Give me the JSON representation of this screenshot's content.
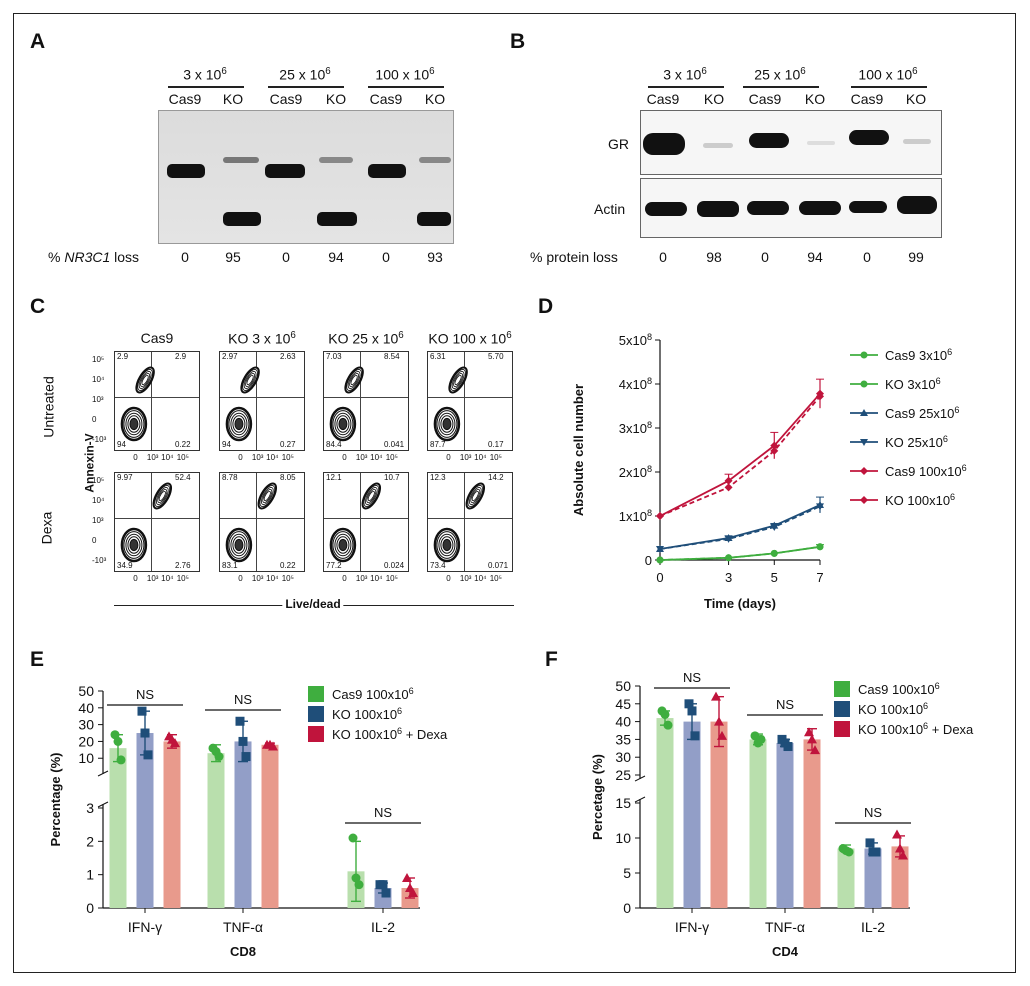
{
  "panel_labels": {
    "a": "A",
    "b": "B",
    "c": "C",
    "d": "D",
    "e": "E",
    "f": "F"
  },
  "panel_a": {
    "groups": [
      {
        "label": "3 x 10",
        "exp": "6"
      },
      {
        "label": "25 x 10",
        "exp": "6"
      },
      {
        "label": "100 x 10",
        "exp": "6"
      }
    ],
    "lanes": [
      "Cas9",
      "KO",
      "Cas9",
      "KO",
      "Cas9",
      "KO"
    ],
    "loss_prefix": "% ",
    "loss_gene": "NR3C1",
    "loss_suffix": " loss",
    "loss_values": [
      "0",
      "95",
      "0",
      "94",
      "0",
      "93"
    ]
  },
  "panel_b": {
    "groups": [
      {
        "label": "3 x 10",
        "exp": "6"
      },
      {
        "label": "25 x 10",
        "exp": "6"
      },
      {
        "label": "100 x 10",
        "exp": "6"
      }
    ],
    "lanes": [
      "Cas9",
      "KO",
      "Cas9",
      "KO",
      "Cas9",
      "KO"
    ],
    "rows": [
      "GR",
      "Actin"
    ],
    "loss_label": "% protein loss",
    "loss_values": [
      "0",
      "98",
      "0",
      "94",
      "0",
      "99"
    ]
  },
  "panel_c": {
    "columns": [
      {
        "label": "Cas9",
        "exp": ""
      },
      {
        "label": "KO 3 x 10",
        "exp": "6"
      },
      {
        "label": "KO 25 x 10",
        "exp": "6"
      },
      {
        "label": "KO 100 x 10",
        "exp": "6"
      }
    ],
    "rows": [
      "Untreated",
      "Dexa"
    ],
    "ylabel": "Annexin-V",
    "xlabel": "Live/dead",
    "y_ticks": [
      "10⁵",
      "10⁴",
      "10³",
      "0",
      "-10³"
    ],
    "x_ticks": [
      "0",
      "10³",
      "10⁴",
      "10⁵"
    ],
    "quadrants": [
      {
        "ul": "2.9",
        "ur": "2.9",
        "ll": "94",
        "lr": "0.22"
      },
      {
        "ul": "2.97",
        "ur": "2.63",
        "ll": "94",
        "lr": "0.27"
      },
      {
        "ul": "7.03",
        "ur": "8.54",
        "ll": "84.4",
        "lr": "0.041"
      },
      {
        "ul": "6.31",
        "ur": "5.70",
        "ll": "87.7",
        "lr": "0.17"
      },
      {
        "ul": "9.97",
        "ur": "52.4",
        "ll": "34.9",
        "lr": "2.76"
      },
      {
        "ul": "8.78",
        "ur": "8.05",
        "ll": "83.1",
        "lr": "0.22"
      },
      {
        "ul": "12.1",
        "ur": "10.7",
        "ll": "77.2",
        "lr": "0.024"
      },
      {
        "ul": "12.3",
        "ur": "14.2",
        "ll": "73.4",
        "lr": "0.071"
      }
    ]
  },
  "chart_data": [
    {
      "id": "D",
      "type": "line",
      "xlabel": "Time (days)",
      "ylabel": "Absolute cell number",
      "x": [
        0,
        3,
        5,
        7
      ],
      "xlim": [
        0,
        7
      ],
      "ylim": [
        0,
        500000000
      ],
      "y_ticks": [
        {
          "v": 0,
          "m": "0",
          "e": ""
        },
        {
          "v": 100000000,
          "m": "1x10",
          "e": "8"
        },
        {
          "v": 200000000,
          "m": "2x10",
          "e": "8"
        },
        {
          "v": 300000000,
          "m": "3x10",
          "e": "8"
        },
        {
          "v": 400000000,
          "m": "4x10",
          "e": "8"
        },
        {
          "v": 500000000,
          "m": "5x10",
          "e": "8"
        }
      ],
      "series": [
        {
          "name": "Cas9 3x10",
          "exp": "6",
          "color": "#3fae3f",
          "dash": false,
          "marker": "circle",
          "values": [
            0,
            5000000,
            15000000,
            30000000
          ],
          "err": [
            0,
            0,
            0,
            5000000
          ]
        },
        {
          "name": "KO 3x10",
          "exp": "6",
          "color": "#3fae3f",
          "dash": true,
          "marker": "circle",
          "values": [
            0,
            5000000,
            15000000,
            30000000
          ],
          "err": [
            0,
            0,
            0,
            0
          ]
        },
        {
          "name": "Cas9 25x10",
          "exp": "6",
          "color": "#1f4e79",
          "dash": false,
          "marker": "triangle",
          "values": [
            25000000,
            50000000,
            78000000,
            125000000
          ],
          "err": [
            0,
            5000000,
            5000000,
            18000000
          ]
        },
        {
          "name": "KO 25x10",
          "exp": "6",
          "color": "#1f4e79",
          "dash": true,
          "marker": "triangle-down",
          "values": [
            25000000,
            48000000,
            75000000,
            122000000
          ],
          "err": [
            0,
            0,
            0,
            0
          ]
        },
        {
          "name": "Cas9 100x10",
          "exp": "6",
          "color": "#c0143c",
          "dash": false,
          "marker": "diamond",
          "values": [
            100000000,
            180000000,
            260000000,
            378000000
          ],
          "err": [
            0,
            15000000,
            30000000,
            33000000
          ]
        },
        {
          "name": "KO 100x10",
          "exp": "6",
          "color": "#c0143c",
          "dash": true,
          "marker": "diamond",
          "values": [
            100000000,
            165000000,
            248000000,
            372000000
          ],
          "err": [
            0,
            0,
            0,
            0
          ]
        }
      ]
    },
    {
      "id": "E",
      "type": "bar",
      "title": "",
      "xlabel": "CD8",
      "ylabel": "Percentage (%)",
      "categories": [
        "IFN-γ",
        "TNF-α",
        "IL-2"
      ],
      "upper_ylim": [
        3,
        50
      ],
      "upper_ticks": [
        10,
        20,
        30,
        40,
        50
      ],
      "lower_ylim": [
        0,
        3
      ],
      "lower_ticks": [
        0,
        1,
        2,
        3
      ],
      "significance": [
        "NS",
        "NS",
        "NS"
      ],
      "series": [
        {
          "name": "Cas9 100x10",
          "exp": "6",
          "suffix": "",
          "color": "#3fae3f",
          "bar_color": "#b9dfad",
          "values": [
            16,
            13,
            1.1
          ],
          "err": [
            8,
            5,
            0.9
          ],
          "points": [
            [
              24,
              20,
              9
            ],
            [
              16,
              14,
              11
            ],
            [
              2.1,
              0.9,
              0.7
            ]
          ]
        },
        {
          "name": "KO 100x10",
          "exp": "6",
          "suffix": "",
          "color": "#1f4e79",
          "bar_color": "#929ec7",
          "values": [
            25,
            20,
            0.6
          ],
          "err": [
            13,
            12,
            0.15
          ],
          "points": [
            [
              38,
              25,
              12
            ],
            [
              32,
              20,
              11
            ],
            [
              0.7,
              0.7,
              0.45
            ]
          ]
        },
        {
          "name": "KO 100x10",
          "exp": "6",
          "suffix": " + Dexa",
          "color": "#c0143c",
          "bar_color": "#e89a8c",
          "values": [
            20,
            18,
            0.6
          ],
          "err": [
            4,
            1,
            0.3
          ],
          "points": [
            [
              23,
              21,
              19
            ],
            [
              18,
              18,
              17
            ],
            [
              0.9,
              0.6,
              0.45
            ]
          ]
        }
      ]
    },
    {
      "id": "F",
      "type": "bar",
      "title": "",
      "xlabel": "CD4",
      "ylabel": "Percetage (%)",
      "categories": [
        "IFN-γ",
        "TNF-α",
        "IL-2"
      ],
      "upper_ylim": [
        25,
        50
      ],
      "upper_ticks": [
        25,
        30,
        35,
        40,
        45,
        50
      ],
      "lower_ylim": [
        0,
        15
      ],
      "lower_ticks": [
        0,
        5,
        10,
        15
      ],
      "significance": [
        "NS",
        "NS",
        "NS"
      ],
      "series": [
        {
          "name": "Cas9 100x10",
          "exp": "6",
          "suffix": "",
          "color": "#3fae3f",
          "bar_color": "#b9dfad",
          "values": [
            41,
            35,
            8.5
          ],
          "err": [
            2,
            1.5,
            0.5
          ],
          "points": [
            [
              43,
              42,
              39
            ],
            [
              36,
              34,
              35
            ],
            [
              8.5,
              8.2,
              8.0
            ]
          ]
        },
        {
          "name": "KO 100x10",
          "exp": "6",
          "suffix": "",
          "color": "#1f4e79",
          "bar_color": "#929ec7",
          "values": [
            40,
            34,
            8.5
          ],
          "err": [
            5,
            1,
            0.8
          ],
          "points": [
            [
              45,
              43,
              36
            ],
            [
              35,
              34,
              33
            ],
            [
              9.3,
              8.0,
              8.0
            ]
          ]
        },
        {
          "name": "KO 100x10",
          "exp": "6",
          "suffix": " + Dexa",
          "color": "#c0143c",
          "bar_color": "#e89a8c",
          "values": [
            40,
            35,
            8.8
          ],
          "err": [
            7,
            3,
            1.5
          ],
          "points": [
            [
              47,
              40,
              36
            ],
            [
              37,
              35,
              32
            ],
            [
              10.5,
              8.5,
              7.5
            ]
          ]
        }
      ]
    }
  ]
}
